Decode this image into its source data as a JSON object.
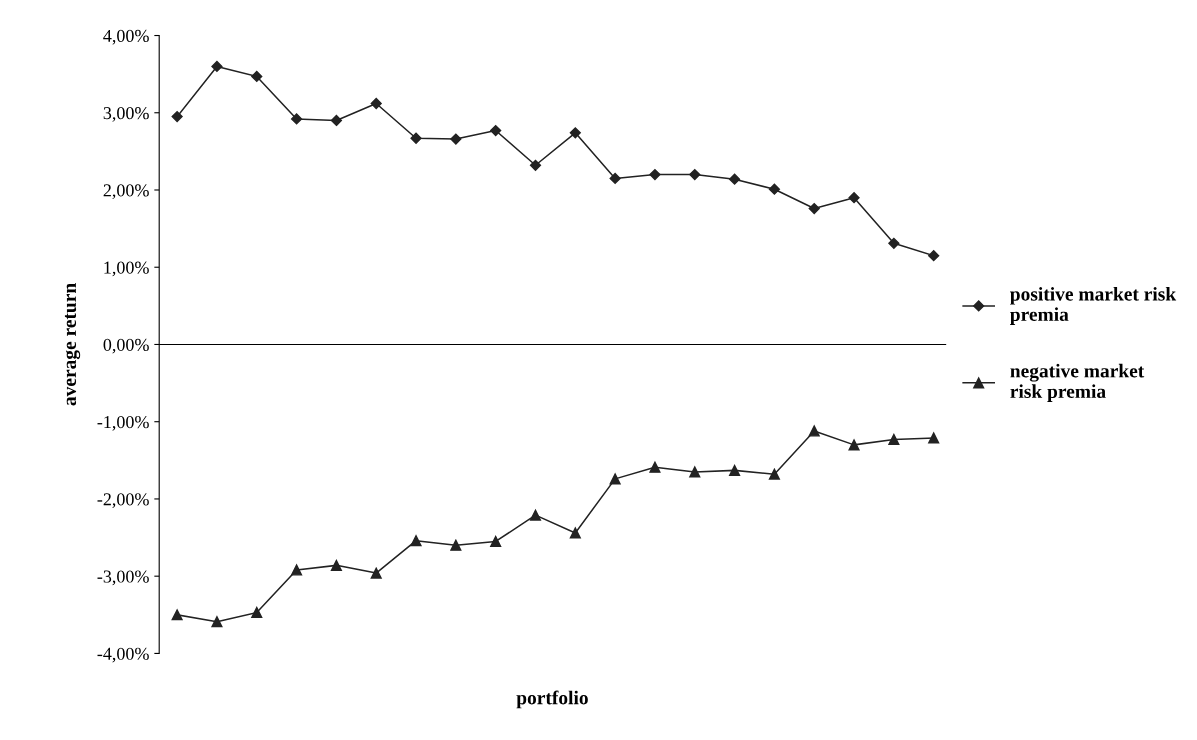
{
  "chart_data": {
    "type": "line",
    "xlabel": "portfolio",
    "ylabel": "average return",
    "categories": [
      null,
      null,
      null,
      null,
      null,
      null,
      null,
      null,
      null,
      null,
      null,
      null,
      null,
      null,
      null,
      null,
      null,
      null,
      null,
      null
    ],
    "series": [
      {
        "name": "positive market risk\npremia",
        "color": "#222222",
        "marker": "diamond",
        "values": [
          2.95,
          3.6,
          3.47,
          2.92,
          2.9,
          3.12,
          2.67,
          2.66,
          2.77,
          2.32,
          2.74,
          2.15,
          2.2,
          2.2,
          2.14,
          2.01,
          1.76,
          1.9,
          1.31,
          1.15
        ]
      },
      {
        "name": "negative market\nrisk premia",
        "color": "#222222",
        "marker": "triangle",
        "values": [
          -3.5,
          -3.59,
          -3.47,
          -2.92,
          -2.86,
          -2.96,
          -2.54,
          -2.6,
          -2.55,
          -2.21,
          -2.44,
          -1.74,
          -1.59,
          -1.65,
          -1.63,
          -1.68,
          -1.12,
          -1.3,
          -1.23,
          -1.21
        ]
      }
    ],
    "ylim": [
      -4,
      4
    ],
    "yticks": [
      {
        "value": -4,
        "label": "-4,00%"
      },
      {
        "value": -3,
        "label": "-3,00%"
      },
      {
        "value": -2,
        "label": "-2,00%"
      },
      {
        "value": -1,
        "label": "-1,00%"
      },
      {
        "value": 0,
        "label": "0,00%"
      },
      {
        "value": 1,
        "label": "1,00%"
      },
      {
        "value": 2,
        "label": "2,00%"
      },
      {
        "value": 3,
        "label": "3,00%"
      },
      {
        "value": 4,
        "label": "4,00%"
      }
    ],
    "tick_labels": "y",
    "legend": "right",
    "line_style": "solid"
  }
}
